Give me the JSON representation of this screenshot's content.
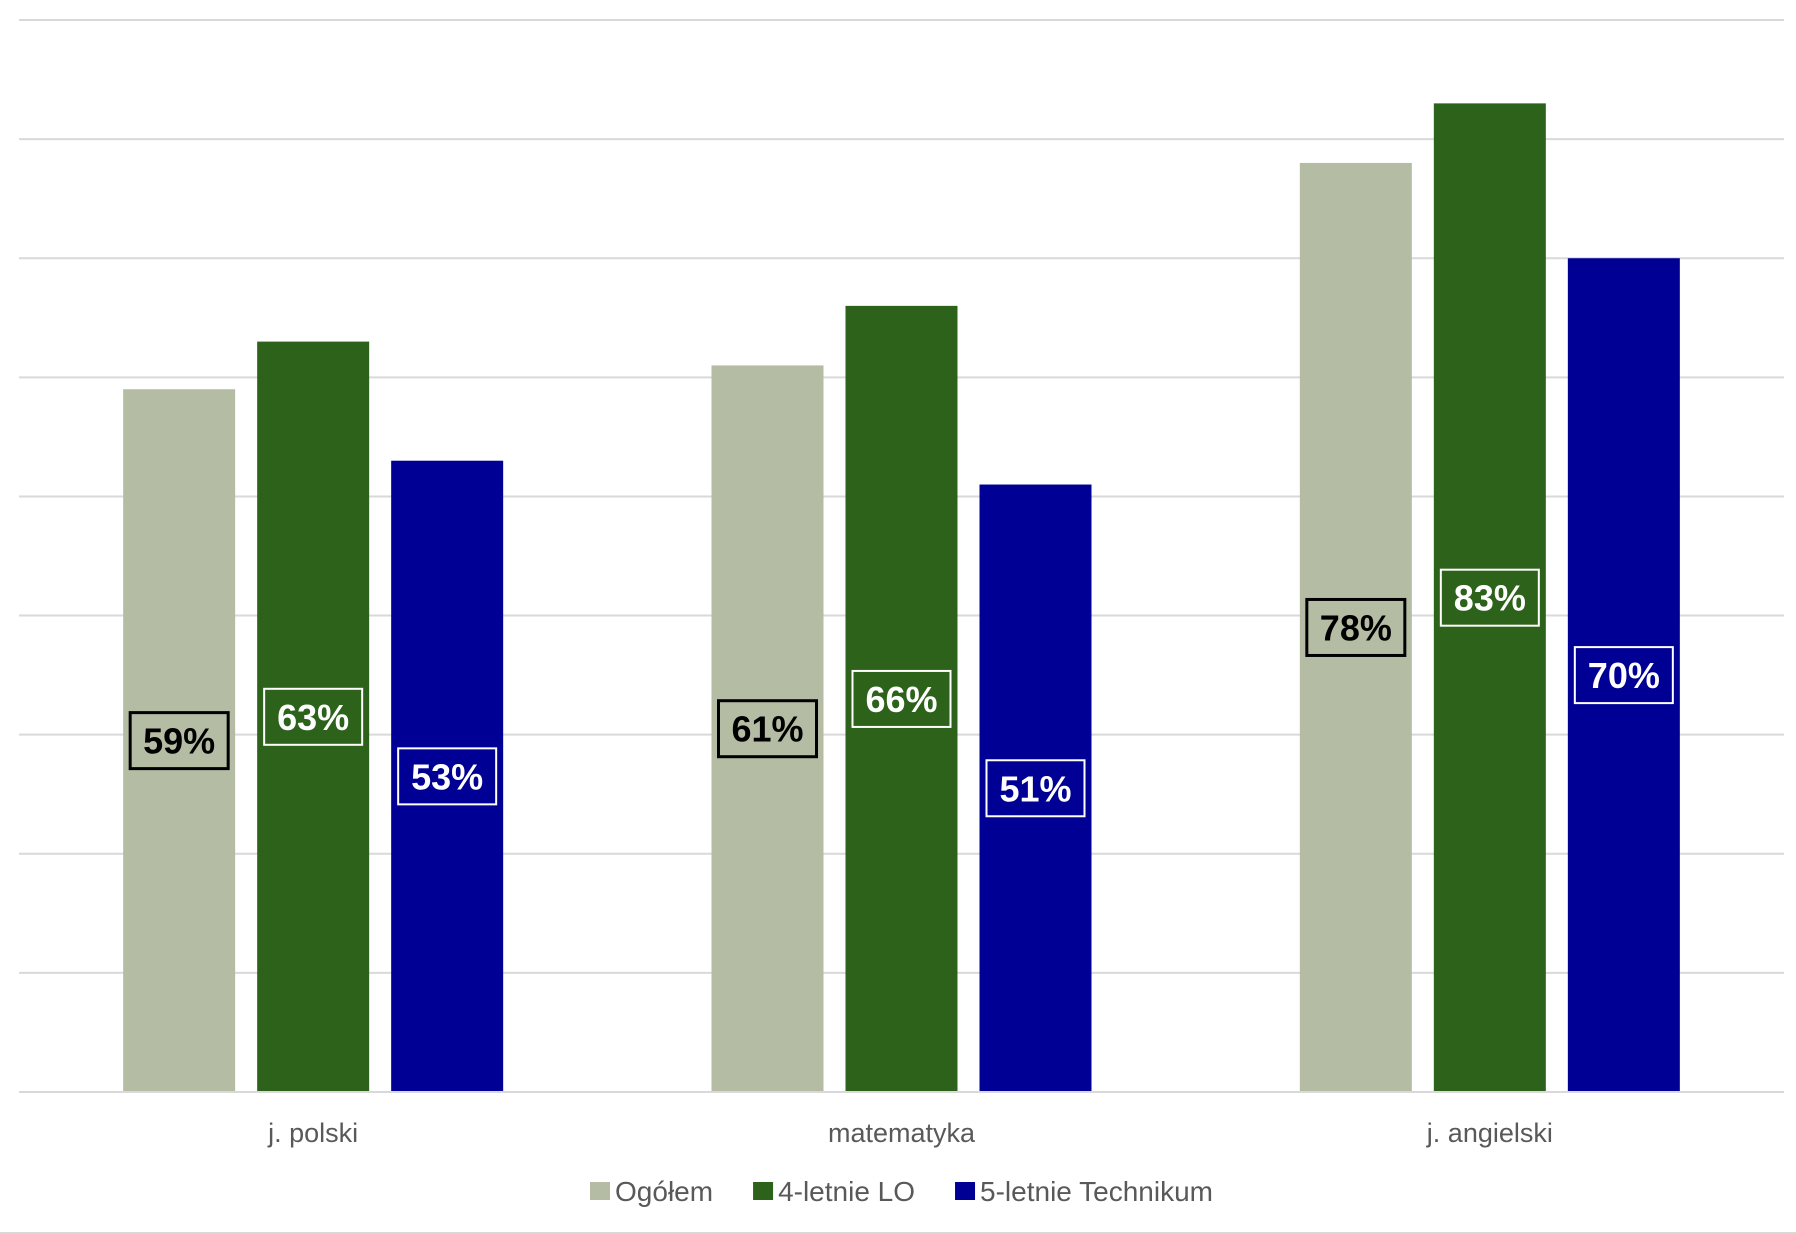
{
  "chart_data": {
    "type": "bar",
    "title": "",
    "xlabel": "",
    "ylabel": "",
    "ylim": [
      0,
      0.9
    ],
    "ytick_step": 0.1,
    "grid": true,
    "show_y_tick_labels": false,
    "legend_position": "bottom",
    "categories": [
      "j. polski",
      "matematyka",
      "j. angielski"
    ],
    "series": [
      {
        "name": "Ogółem",
        "color": "#B4BCA3",
        "label_color": "#000000",
        "values": [
          0.59,
          0.61,
          0.78
        ],
        "labels": [
          "59%",
          "61%",
          "78%"
        ]
      },
      {
        "name": "4-letnie LO",
        "color": "#2C6219",
        "label_color": "#FFFFFF",
        "values": [
          0.63,
          0.66,
          0.83
        ],
        "labels": [
          "63%",
          "66%",
          "83%"
        ]
      },
      {
        "name": "5-letnie Technikum",
        "color": "#000094",
        "label_color": "#FFFFFF",
        "values": [
          0.53,
          0.51,
          0.7
        ],
        "labels": [
          "53%",
          "51%",
          "70%"
        ]
      }
    ]
  }
}
